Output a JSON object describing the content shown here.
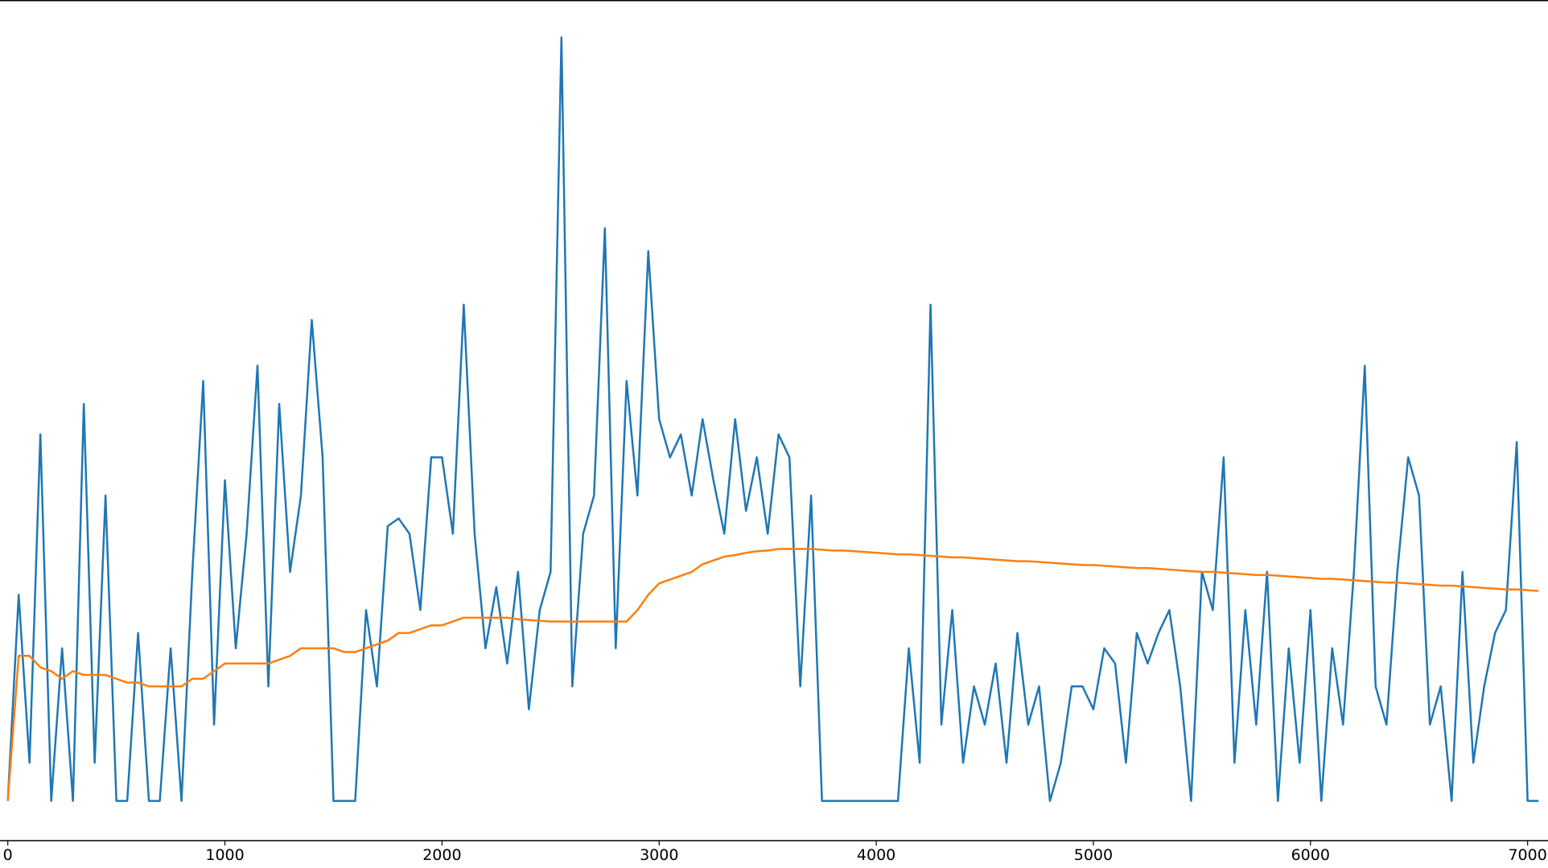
{
  "chart_data": {
    "type": "line",
    "x": [
      0,
      50,
      100,
      150,
      200,
      250,
      300,
      350,
      400,
      450,
      500,
      550,
      600,
      650,
      700,
      750,
      800,
      850,
      900,
      950,
      1000,
      1050,
      1100,
      1150,
      1200,
      1250,
      1300,
      1350,
      1400,
      1450,
      1500,
      1550,
      1600,
      1650,
      1700,
      1750,
      1800,
      1850,
      1900,
      1950,
      2000,
      2050,
      2100,
      2150,
      2200,
      2250,
      2300,
      2350,
      2400,
      2450,
      2500,
      2550,
      2600,
      2650,
      2700,
      2750,
      2800,
      2850,
      2900,
      2950,
      3000,
      3050,
      3100,
      3150,
      3200,
      3250,
      3300,
      3350,
      3400,
      3450,
      3500,
      3550,
      3600,
      3650,
      3700,
      3750,
      3800,
      3850,
      3900,
      3950,
      4000,
      4050,
      4100,
      4150,
      4200,
      4250,
      4300,
      4350,
      4400,
      4450,
      4500,
      4550,
      4600,
      4650,
      4700,
      4750,
      4800,
      4850,
      4900,
      4950,
      5000,
      5050,
      5100,
      5150,
      5200,
      5250,
      5300,
      5350,
      5400,
      5450,
      5500,
      5550,
      5600,
      5650,
      5700,
      5750,
      5800,
      5850,
      5900,
      5950,
      6000,
      6050,
      6100,
      6150,
      6200,
      6250,
      6300,
      6350,
      6400,
      6450,
      6500,
      6550,
      6600,
      6650,
      6700,
      6750,
      6800,
      6850,
      6900,
      6950,
      7000,
      7050
    ],
    "series": [
      {
        "color": "#1f77b4",
        "values": [
          0,
          27,
          5,
          48,
          0,
          20,
          0,
          52,
          5,
          40,
          0,
          0,
          22,
          0,
          0,
          20,
          0,
          30,
          55,
          10,
          42,
          20,
          35,
          57,
          15,
          52,
          30,
          40,
          63,
          45,
          0,
          0,
          0,
          25,
          15,
          36,
          37,
          35,
          25,
          45,
          45,
          35,
          65,
          35,
          20,
          28,
          18,
          30,
          12,
          25,
          30,
          100,
          15,
          35,
          40,
          75,
          20,
          55,
          40,
          72,
          50,
          45,
          48,
          40,
          50,
          42,
          35,
          50,
          38,
          45,
          35,
          48,
          45,
          15,
          40,
          0,
          0,
          0,
          0,
          0,
          0,
          0,
          0,
          20,
          5,
          65,
          10,
          25,
          5,
          15,
          10,
          18,
          5,
          22,
          10,
          15,
          0,
          5,
          15,
          15,
          12,
          20,
          18,
          5,
          22,
          18,
          22,
          25,
          15,
          0,
          30,
          25,
          45,
          5,
          25,
          10,
          30,
          0,
          20,
          5,
          25,
          0,
          20,
          10,
          30,
          57,
          15,
          10,
          30,
          45,
          40,
          10,
          15,
          0,
          30,
          5,
          15,
          22,
          25,
          47,
          0,
          0
        ]
      },
      {
        "color": "#ff7f0e",
        "values": [
          0,
          19,
          19,
          17.5,
          17,
          16,
          17,
          16.5,
          16.5,
          16.5,
          16,
          15.5,
          15.5,
          15,
          15,
          15,
          15,
          16,
          16,
          17,
          18,
          18,
          18,
          18,
          18,
          18.5,
          19,
          20,
          20,
          20,
          20,
          19.5,
          19.5,
          20,
          20.5,
          21,
          22,
          22,
          22.5,
          23,
          23,
          23.5,
          24,
          24,
          24,
          24,
          24,
          23.8,
          23.7,
          23.6,
          23.5,
          23.5,
          23.5,
          23.5,
          23.5,
          23.5,
          23.5,
          23.5,
          25,
          27,
          28.5,
          29,
          29.5,
          30,
          31,
          31.5,
          32,
          32.2,
          32.5,
          32.7,
          32.8,
          33,
          33,
          33,
          33,
          32.9,
          32.8,
          32.8,
          32.7,
          32.6,
          32.5,
          32.4,
          32.3,
          32.3,
          32.2,
          32.1,
          32.0,
          31.9,
          31.9,
          31.8,
          31.7,
          31.6,
          31.5,
          31.4,
          31.4,
          31.3,
          31.2,
          31.1,
          31.0,
          30.9,
          30.9,
          30.8,
          30.7,
          30.6,
          30.5,
          30.5,
          30.4,
          30.3,
          30.2,
          30.1,
          30.0,
          30.0,
          29.9,
          29.8,
          29.7,
          29.6,
          29.6,
          29.5,
          29.4,
          29.3,
          29.2,
          29.1,
          29.1,
          29.0,
          28.9,
          28.8,
          28.7,
          28.6,
          28.6,
          28.5,
          28.4,
          28.3,
          28.2,
          28.2,
          28.1,
          28.0,
          27.9,
          27.8,
          27.7,
          27.7,
          27.6,
          27.5
        ]
      }
    ],
    "xlim": [
      -36,
      7094
    ],
    "ylim": [
      -5.2,
      104.9
    ],
    "xticks": [
      0,
      1000,
      2000,
      3000,
      4000,
      5000,
      6000,
      7000
    ]
  }
}
